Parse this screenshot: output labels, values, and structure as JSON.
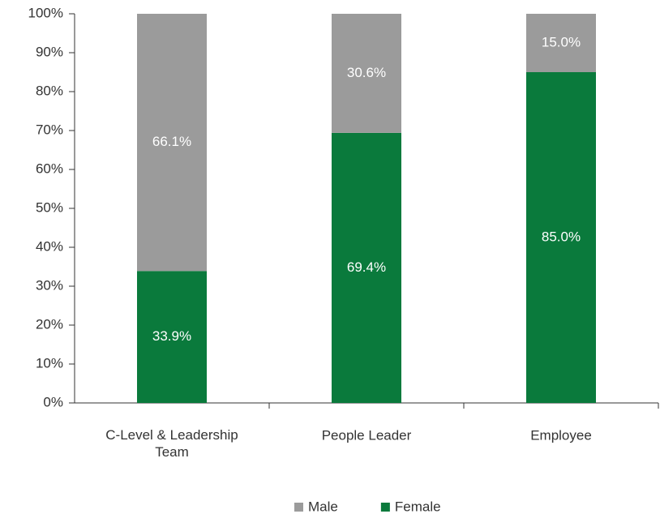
{
  "chart_data": {
    "type": "stacked_bar",
    "categories": [
      "C-Level & Leadership Team",
      "People Leader",
      "Employee"
    ],
    "series": [
      {
        "name": "Female",
        "color": "#0a7a3c",
        "values": [
          33.9,
          69.4,
          85.0
        ],
        "value_labels": [
          "33.9%",
          "69.4%",
          "85.0%"
        ]
      },
      {
        "name": "Male",
        "color": "#9b9b9b",
        "values": [
          66.1,
          30.6,
          15.0
        ],
        "value_labels": [
          "66.1%",
          "30.6%",
          "15.0%"
        ]
      }
    ],
    "ylim": [
      0,
      100
    ],
    "yticks": [
      {
        "value": 0,
        "label": "0%"
      },
      {
        "value": 10,
        "label": "10%"
      },
      {
        "value": 20,
        "label": "20%"
      },
      {
        "value": 30,
        "label": "30%"
      },
      {
        "value": 40,
        "label": "40%"
      },
      {
        "value": 50,
        "label": "50%"
      },
      {
        "value": 60,
        "label": "60%"
      },
      {
        "value": 70,
        "label": "70%"
      },
      {
        "value": 80,
        "label": "80%"
      },
      {
        "value": 90,
        "label": "90%"
      },
      {
        "value": 100,
        "label": "100%"
      }
    ],
    "legend": "bottom"
  }
}
